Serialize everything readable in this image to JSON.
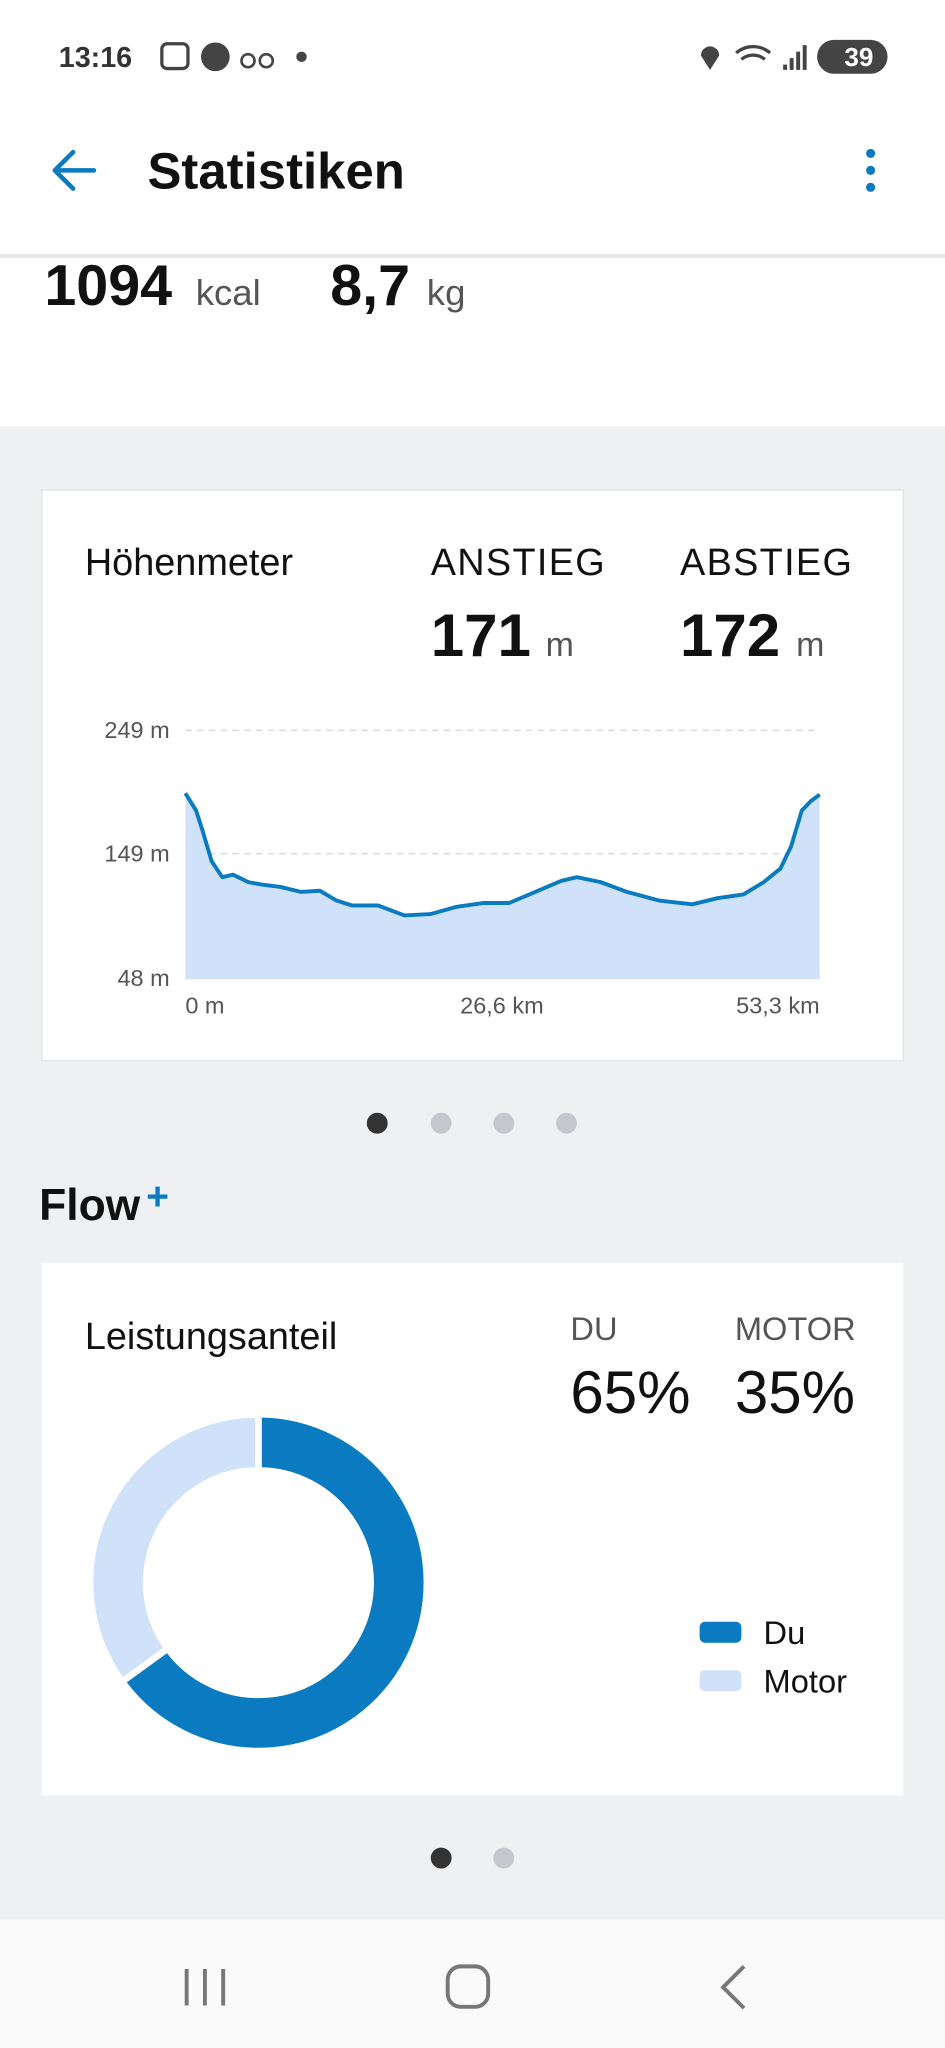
{
  "status_bar": {
    "time": "13:16",
    "battery": "39"
  },
  "header": {
    "title": "Statistiken"
  },
  "summary": [
    {
      "value": "1094",
      "unit": "kcal"
    },
    {
      "value": "8,7",
      "unit": "kg"
    }
  ],
  "section": {
    "title": "Flow",
    "title_mark": "+"
  },
  "chart_data": [
    {
      "type": "line",
      "title": "Höhenmeter",
      "stats": [
        {
          "label": "ANSTIEG",
          "value": 171,
          "unit": "m"
        },
        {
          "label": "ABSTIEG",
          "value": 172,
          "unit": "m"
        }
      ],
      "x": [
        0,
        0.9,
        1.4,
        2.2,
        3.1,
        4.0,
        5.3,
        6.4,
        8.0,
        9.7,
        11.3,
        12.7,
        14.0,
        16.2,
        18.4,
        20.6,
        22.8,
        25.0,
        27.2,
        29.4,
        31.6,
        32.9,
        34.9,
        37.1,
        39.8,
        42.6,
        44.7,
        46.9,
        48.6,
        50.0,
        50.9,
        51.8,
        52.6,
        53.3
      ],
      "series": [
        {
          "color": "#0a7bc0",
          "fill": "#cfe2fa",
          "values": [
            198,
            184,
            169,
            143,
            130,
            132,
            126,
            124,
            122,
            118,
            119,
            111,
            107,
            107,
            99,
            100,
            106,
            109,
            109,
            118,
            127,
            130,
            126,
            118,
            111,
            108,
            113,
            116,
            126,
            137,
            155,
            184,
            192,
            197
          ]
        }
      ],
      "xlim": [
        0,
        53.3
      ],
      "xticks": [
        {
          "value": 0,
          "label": "0 m"
        },
        {
          "value": 26.6,
          "label": "26,6 km"
        },
        {
          "value": 53.3,
          "label": "53,3 km"
        }
      ],
      "ylim": [
        48,
        249
      ],
      "yticks": [
        {
          "value": 48,
          "label": "48 m"
        },
        {
          "value": 149,
          "label": "149 m"
        },
        {
          "value": 249,
          "label": "249 m"
        }
      ],
      "grid": true
    },
    {
      "type": "pie",
      "title": "Leistungsanteil",
      "donut": true,
      "stat_labels": [
        "DU",
        "MOTOR"
      ],
      "categories": [
        "Du",
        "Motor"
      ],
      "values": [
        65,
        35
      ],
      "value_labels": [
        "65%",
        "35%"
      ],
      "colors": [
        "#0a7bc0",
        "#cfe2fa"
      ],
      "legend": "bottom-right"
    }
  ]
}
